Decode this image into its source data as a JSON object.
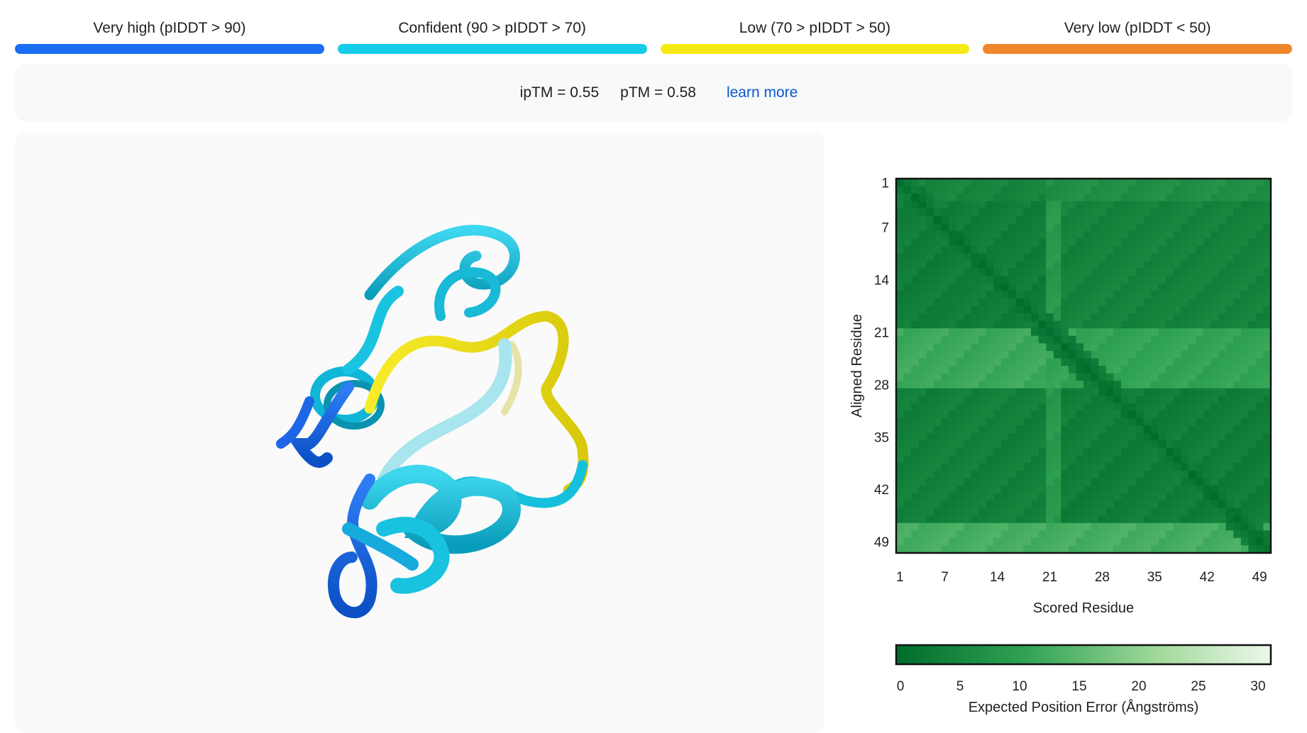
{
  "legend": [
    {
      "label": "Very high (pIDDT > 90)",
      "color": "#1a6ef3"
    },
    {
      "label": "Confident (90 > pIDDT > 70)",
      "color": "#16cde9"
    },
    {
      "label": "Low (70 > pIDDT > 50)",
      "color": "#f5ea15"
    },
    {
      "label": "Very low (pIDDT < 50)",
      "color": "#f0862b"
    }
  ],
  "metrics": {
    "iptm": "ipTM = 0.55",
    "ptm": "pTM = 0.58",
    "learn_more": "learn more"
  },
  "pae_plot": {
    "y_label": "Aligned Residue",
    "x_label": "Scored Residue",
    "ticks": [
      "1",
      "7",
      "14",
      "21",
      "28",
      "35",
      "42",
      "49"
    ],
    "colorbar_label": "Expected Position Error (Ångströms)",
    "colorbar_ticks": [
      "0",
      "5",
      "10",
      "15",
      "20",
      "25",
      "30"
    ]
  },
  "chart_data": {
    "type": "heatmap",
    "xlabel": "Scored Residue",
    "ylabel": "Aligned Residue",
    "residues": 50,
    "xlim": [
      1,
      50
    ],
    "ylim": [
      1,
      50
    ],
    "color_scale": {
      "min": 0,
      "max": 31,
      "low_color": "#006d2c",
      "high_color": "#edf8e9"
    },
    "blocks": [
      {
        "rows": [
          1,
          3
        ],
        "cols": [
          1,
          20
        ],
        "value": 5
      },
      {
        "rows": [
          1,
          3
        ],
        "cols": [
          21,
          50
        ],
        "value": 7
      },
      {
        "rows": [
          4,
          20
        ],
        "cols": [
          1,
          20
        ],
        "value": 3.5
      },
      {
        "rows": [
          4,
          20
        ],
        "cols": [
          21,
          22
        ],
        "value": 9
      },
      {
        "rows": [
          4,
          20
        ],
        "cols": [
          23,
          50
        ],
        "value": 4.5
      },
      {
        "rows": [
          21,
          28
        ],
        "cols": [
          1,
          20
        ],
        "value": 12
      },
      {
        "rows": [
          21,
          28
        ],
        "cols": [
          21,
          50
        ],
        "value": 11
      },
      {
        "rows": [
          29,
          46
        ],
        "cols": [
          1,
          20
        ],
        "value": 4
      },
      {
        "rows": [
          29,
          46
        ],
        "cols": [
          21,
          22
        ],
        "value": 9
      },
      {
        "rows": [
          29,
          46
        ],
        "cols": [
          23,
          50
        ],
        "value": 3.5
      },
      {
        "rows": [
          47,
          50
        ],
        "cols": [
          1,
          50
        ],
        "value": 13
      }
    ],
    "diagonal_value": 0.5
  }
}
